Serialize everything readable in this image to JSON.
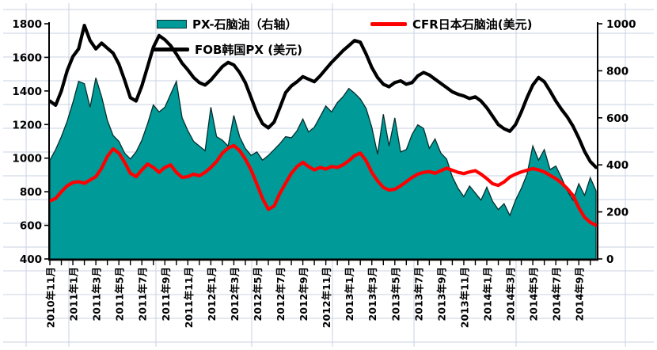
{
  "chart": {
    "colors": {
      "area_fill": "#009B98",
      "area_outline": "#062e2e",
      "naphtha_line": "#FE0000",
      "px_line": "#000000",
      "grid": "#c9d2e3",
      "axis": "#000000",
      "text": "#000000"
    },
    "legend": [
      {
        "label": "PX-石脑油（右轴）",
        "type": "area",
        "color": "#009B98"
      },
      {
        "label": "CFR日本石脑油(美元)",
        "type": "line",
        "color": "#FE0000"
      },
      {
        "label": "FOB韩国PX (美元)",
        "type": "line",
        "color": "#000000"
      }
    ]
  },
  "chart_data": {
    "type": "area",
    "subtype": "combo: filled area (right axis) + two lines (left axis)",
    "title": "",
    "xlabel": "",
    "ylabel": "",
    "x_period": "2010-11 to 2014-10, two samples per month",
    "x_tick_labels": [
      "2010年11月",
      "2011年1月",
      "2011年3月",
      "2011年5月",
      "2011年7月",
      "2011年9月",
      "2011年11月",
      "2012年1月",
      "2012年3月",
      "2012年5月",
      "2012年7月",
      "2012年9月",
      "2012年11月",
      "2013年1月",
      "2013年3月",
      "2013年5月",
      "2013年7月",
      "2013年9月",
      "2013年11月",
      "2014年1月",
      "2014年3月",
      "2014年5月",
      "2014年7月",
      "2014年9月"
    ],
    "y_axis_left": {
      "min": 400,
      "max": 1800,
      "ticks": [
        1800,
        1600,
        1400,
        1200,
        1000,
        800,
        600,
        400
      ]
    },
    "y_axis_right": {
      "min": 0,
      "max": 1000,
      "ticks": [
        1000,
        800,
        600,
        400,
        200,
        0
      ]
    },
    "grid": "background spreadsheet grid only",
    "legend_position": "top",
    "series": [
      {
        "name": "PX-石脑油（右轴）",
        "axis": "right",
        "type": "area",
        "values": [
          420,
          465,
          520,
          585,
          665,
          755,
          745,
          645,
          770,
          690,
          590,
          525,
          500,
          450,
          425,
          455,
          505,
          575,
          655,
          625,
          645,
          700,
          755,
          600,
          545,
          500,
          480,
          460,
          645,
          520,
          505,
          480,
          610,
          520,
          470,
          440,
          455,
          420,
          440,
          465,
          490,
          520,
          515,
          545,
          595,
          540,
          560,
          605,
          650,
          625,
          665,
          690,
          725,
          705,
          680,
          640,
          560,
          445,
          615,
          480,
          600,
          455,
          465,
          530,
          570,
          555,
          470,
          510,
          450,
          425,
          350,
          300,
          265,
          310,
          280,
          250,
          305,
          245,
          210,
          235,
          185,
          250,
          300,
          360,
          480,
          420,
          465,
          380,
          395,
          345,
          290,
          250,
          320,
          270,
          345,
          290
        ]
      },
      {
        "name": "CFR日本石脑油(美元)",
        "axis": "left",
        "type": "line",
        "values": [
          745,
          760,
          800,
          835,
          855,
          860,
          850,
          870,
          890,
          940,
          1010,
          1055,
          1030,
          975,
          910,
          890,
          930,
          965,
          945,
          915,
          945,
          960,
          915,
          885,
          890,
          905,
          895,
          915,
          945,
          980,
          1030,
          1060,
          1075,
          1045,
          995,
          930,
          845,
          760,
          695,
          715,
          790,
          850,
          910,
          950,
          975,
          950,
          930,
          945,
          935,
          950,
          945,
          960,
          985,
          1015,
          1030,
          985,
          915,
          865,
          825,
          810,
          815,
          835,
          860,
          885,
          905,
          915,
          920,
          910,
          925,
          940,
          928,
          915,
          908,
          918,
          925,
          905,
          878,
          848,
          838,
          858,
          888,
          905,
          918,
          928,
          938,
          930,
          918,
          898,
          878,
          852,
          818,
          778,
          705,
          648,
          618,
          600
        ]
      },
      {
        "name": "FOB韩国PX (美元)",
        "axis": "left",
        "type": "line",
        "values": [
          1340,
          1315,
          1400,
          1520,
          1605,
          1650,
          1790,
          1700,
          1650,
          1685,
          1655,
          1625,
          1560,
          1465,
          1360,
          1340,
          1430,
          1545,
          1660,
          1730,
          1705,
          1670,
          1620,
          1565,
          1525,
          1480,
          1450,
          1435,
          1465,
          1505,
          1545,
          1570,
          1555,
          1510,
          1450,
          1360,
          1270,
          1205,
          1180,
          1215,
          1300,
          1390,
          1430,
          1455,
          1485,
          1470,
          1455,
          1490,
          1530,
          1570,
          1605,
          1640,
          1670,
          1700,
          1690,
          1620,
          1540,
          1480,
          1440,
          1425,
          1450,
          1460,
          1440,
          1450,
          1490,
          1510,
          1495,
          1470,
          1445,
          1420,
          1395,
          1380,
          1370,
          1355,
          1365,
          1340,
          1300,
          1250,
          1200,
          1175,
          1160,
          1200,
          1275,
          1360,
          1435,
          1480,
          1455,
          1400,
          1340,
          1290,
          1245,
          1190,
          1120,
          1040,
          980,
          945
        ]
      }
    ]
  }
}
